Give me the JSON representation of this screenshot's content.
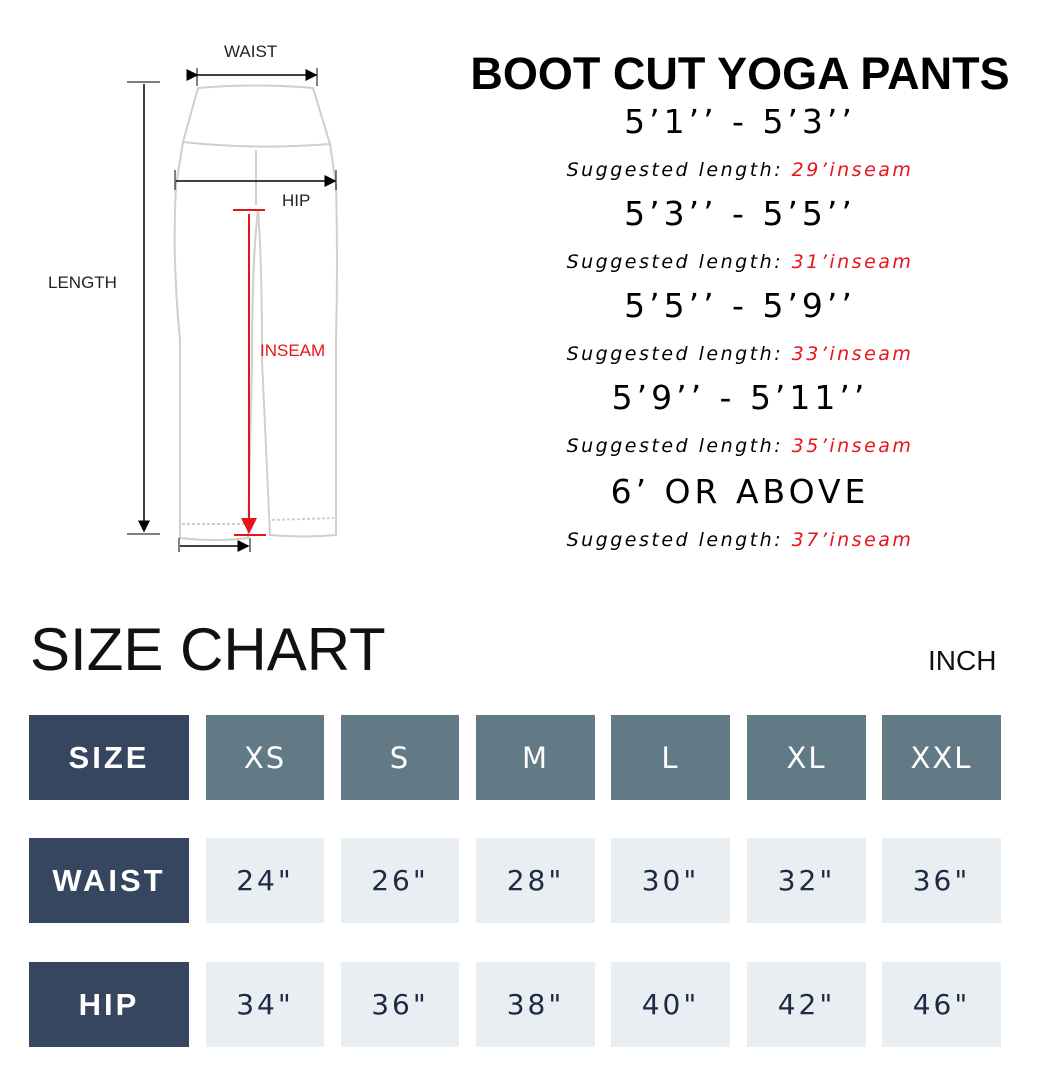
{
  "diagram": {
    "waist_label": "WAIST",
    "hip_label": "HIP",
    "length_label": "LENGTH",
    "inseam_label": "INSEAM"
  },
  "title": "BOOT CUT YOGA PANTS",
  "recommendations": [
    {
      "range": "5’1’’ - 5’3’’",
      "prefix": "Suggested length: ",
      "inseam": "29’inseam"
    },
    {
      "range": "5’3’’ - 5’5’’",
      "prefix": "Suggested length: ",
      "inseam": "31’inseam"
    },
    {
      "range": "5’5’’ - 5’9’’",
      "prefix": "Suggested length: ",
      "inseam": "33’inseam"
    },
    {
      "range": "5’9’’ - 5’11’’",
      "prefix": "Suggested length: ",
      "inseam": "35’inseam"
    },
    {
      "range": "6’ OR ABOVE",
      "prefix": "Suggested length: ",
      "inseam": "37’inseam"
    }
  ],
  "size_chart": {
    "title": "SIZE CHART",
    "unit": "INCH",
    "rows": [
      {
        "label": "SIZE",
        "values": [
          "XS",
          "S",
          "M",
          "L",
          "XL",
          "XXL"
        ]
      },
      {
        "label": "WAIST",
        "values": [
          "24\"",
          "26\"",
          "28\"",
          "30\"",
          "32\"",
          "36\""
        ]
      },
      {
        "label": "HIP",
        "values": [
          "34\"",
          "36\"",
          "38\"",
          "40\"",
          "42\"",
          "46\""
        ]
      }
    ]
  },
  "colors": {
    "label_bg": "#36465e",
    "header_bg": "#627a86",
    "value_bg": "#e9eef3",
    "accent_red": "#e8141a"
  }
}
